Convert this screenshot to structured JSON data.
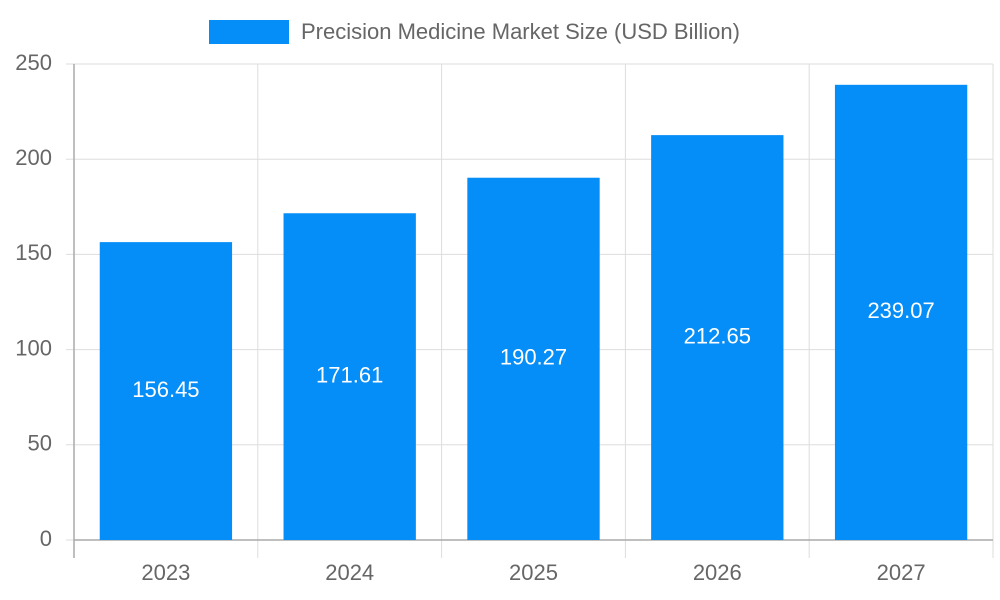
{
  "chart_data": {
    "type": "bar",
    "categories": [
      "2023",
      "2024",
      "2025",
      "2026",
      "2027"
    ],
    "series": [
      {
        "name": "Precision Medicine Market Size (USD Billion)",
        "color": "#058df8",
        "values": [
          156.45,
          171.61,
          190.27,
          212.65,
          239.07
        ]
      }
    ],
    "ylim": [
      0,
      250
    ],
    "yticks": [
      0,
      50,
      100,
      150,
      200,
      250
    ],
    "grid": true,
    "legend": "top"
  }
}
